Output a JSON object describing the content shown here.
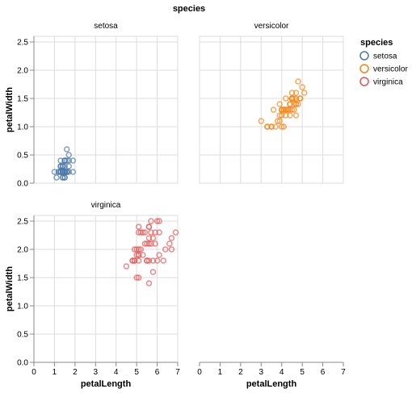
{
  "chart_data": {
    "type": "scatter",
    "title": "species",
    "xlabel": "petalLength",
    "ylabel": "petalWidth",
    "xlim": [
      0,
      7
    ],
    "ylim": [
      0,
      2.6
    ],
    "x_ticks": [
      "0",
      "1",
      "2",
      "3",
      "4",
      "5",
      "6",
      "7"
    ],
    "y_ticks": [
      "0.0",
      "0.5",
      "1.0",
      "1.5",
      "2.0",
      "2.5"
    ],
    "grid": true,
    "legend": {
      "title": "species",
      "placement": "right",
      "items": [
        {
          "label": "setosa",
          "color": "#4c78a8"
        },
        {
          "label": "versicolor",
          "color": "#f58518"
        },
        {
          "label": "virginica",
          "color": "#e45756"
        }
      ]
    },
    "facets": [
      {
        "name": "setosa",
        "color": "#4c78a8",
        "points": [
          [
            1.4,
            0.2
          ],
          [
            1.4,
            0.2
          ],
          [
            1.3,
            0.2
          ],
          [
            1.5,
            0.2
          ],
          [
            1.4,
            0.2
          ],
          [
            1.7,
            0.4
          ],
          [
            1.4,
            0.3
          ],
          [
            1.5,
            0.2
          ],
          [
            1.4,
            0.2
          ],
          [
            1.5,
            0.1
          ],
          [
            1.5,
            0.2
          ],
          [
            1.6,
            0.2
          ],
          [
            1.4,
            0.1
          ],
          [
            1.1,
            0.1
          ],
          [
            1.2,
            0.2
          ],
          [
            1.5,
            0.4
          ],
          [
            1.3,
            0.4
          ],
          [
            1.4,
            0.3
          ],
          [
            1.7,
            0.3
          ],
          [
            1.5,
            0.3
          ],
          [
            1.7,
            0.2
          ],
          [
            1.5,
            0.4
          ],
          [
            1.0,
            0.2
          ],
          [
            1.7,
            0.5
          ],
          [
            1.9,
            0.2
          ],
          [
            1.6,
            0.2
          ],
          [
            1.6,
            0.4
          ],
          [
            1.5,
            0.2
          ],
          [
            1.4,
            0.2
          ],
          [
            1.6,
            0.2
          ],
          [
            1.6,
            0.2
          ],
          [
            1.5,
            0.4
          ],
          [
            1.5,
            0.1
          ],
          [
            1.4,
            0.2
          ],
          [
            1.5,
            0.2
          ],
          [
            1.2,
            0.2
          ],
          [
            1.3,
            0.2
          ],
          [
            1.4,
            0.1
          ],
          [
            1.3,
            0.2
          ],
          [
            1.5,
            0.2
          ],
          [
            1.3,
            0.3
          ],
          [
            1.3,
            0.3
          ],
          [
            1.3,
            0.2
          ],
          [
            1.6,
            0.6
          ],
          [
            1.9,
            0.4
          ],
          [
            1.4,
            0.3
          ],
          [
            1.6,
            0.2
          ],
          [
            1.4,
            0.2
          ],
          [
            1.5,
            0.2
          ],
          [
            1.4,
            0.2
          ]
        ]
      },
      {
        "name": "versicolor",
        "color": "#f58518",
        "points": [
          [
            4.7,
            1.4
          ],
          [
            4.5,
            1.5
          ],
          [
            4.9,
            1.5
          ],
          [
            4.0,
            1.3
          ],
          [
            4.6,
            1.5
          ],
          [
            4.5,
            1.3
          ],
          [
            4.7,
            1.6
          ],
          [
            3.3,
            1.0
          ],
          [
            4.6,
            1.3
          ],
          [
            3.9,
            1.4
          ],
          [
            3.5,
            1.0
          ],
          [
            4.2,
            1.5
          ],
          [
            4.0,
            1.0
          ],
          [
            4.7,
            1.4
          ],
          [
            3.6,
            1.3
          ],
          [
            4.4,
            1.4
          ],
          [
            4.5,
            1.5
          ],
          [
            4.1,
            1.0
          ],
          [
            4.5,
            1.5
          ],
          [
            3.9,
            1.1
          ],
          [
            4.8,
            1.8
          ],
          [
            4.0,
            1.3
          ],
          [
            4.9,
            1.5
          ],
          [
            4.7,
            1.2
          ],
          [
            4.3,
            1.3
          ],
          [
            4.4,
            1.4
          ],
          [
            4.8,
            1.4
          ],
          [
            5.0,
            1.7
          ],
          [
            4.5,
            1.5
          ],
          [
            3.5,
            1.0
          ],
          [
            3.8,
            1.1
          ],
          [
            3.7,
            1.0
          ],
          [
            3.9,
            1.2
          ],
          [
            5.1,
            1.6
          ],
          [
            4.5,
            1.5
          ],
          [
            4.5,
            1.6
          ],
          [
            4.7,
            1.5
          ],
          [
            4.4,
            1.3
          ],
          [
            4.1,
            1.3
          ],
          [
            4.0,
            1.3
          ],
          [
            4.4,
            1.2
          ],
          [
            4.6,
            1.4
          ],
          [
            4.0,
            1.2
          ],
          [
            3.3,
            1.0
          ],
          [
            4.2,
            1.3
          ],
          [
            4.2,
            1.2
          ],
          [
            4.2,
            1.3
          ],
          [
            4.3,
            1.3
          ],
          [
            3.0,
            1.1
          ],
          [
            4.1,
            1.3
          ]
        ]
      },
      {
        "name": "virginica",
        "color": "#e45756",
        "points": [
          [
            6.0,
            2.5
          ],
          [
            5.1,
            1.9
          ],
          [
            5.9,
            2.1
          ],
          [
            5.6,
            1.8
          ],
          [
            5.8,
            2.2
          ],
          [
            6.6,
            2.1
          ],
          [
            4.5,
            1.7
          ],
          [
            6.3,
            1.8
          ],
          [
            5.8,
            1.8
          ],
          [
            6.1,
            2.5
          ],
          [
            5.1,
            2.0
          ],
          [
            5.3,
            1.9
          ],
          [
            5.5,
            2.1
          ],
          [
            5.0,
            2.0
          ],
          [
            5.1,
            2.4
          ],
          [
            5.3,
            2.3
          ],
          [
            5.5,
            1.8
          ],
          [
            6.7,
            2.2
          ],
          [
            6.9,
            2.3
          ],
          [
            5.0,
            1.5
          ],
          [
            5.7,
            2.3
          ],
          [
            4.9,
            2.0
          ],
          [
            6.7,
            2.0
          ],
          [
            4.9,
            1.8
          ],
          [
            5.7,
            2.1
          ],
          [
            6.0,
            1.8
          ],
          [
            4.8,
            1.8
          ],
          [
            4.9,
            1.8
          ],
          [
            5.6,
            2.1
          ],
          [
            5.8,
            1.6
          ],
          [
            6.1,
            1.9
          ],
          [
            6.4,
            2.0
          ],
          [
            5.6,
            2.2
          ],
          [
            5.1,
            1.5
          ],
          [
            5.6,
            1.4
          ],
          [
            6.1,
            2.3
          ],
          [
            5.6,
            2.4
          ],
          [
            5.5,
            1.8
          ],
          [
            4.8,
            1.8
          ],
          [
            5.4,
            2.1
          ],
          [
            5.6,
            2.4
          ],
          [
            5.1,
            2.3
          ],
          [
            5.1,
            1.9
          ],
          [
            5.9,
            2.3
          ],
          [
            5.7,
            2.5
          ],
          [
            5.2,
            2.3
          ],
          [
            5.0,
            1.9
          ],
          [
            5.2,
            2.0
          ],
          [
            5.4,
            2.3
          ],
          [
            5.1,
            1.8
          ]
        ]
      }
    ]
  }
}
